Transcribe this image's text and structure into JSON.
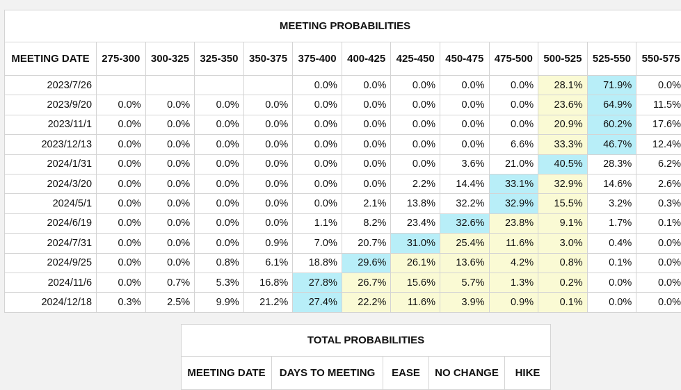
{
  "colors": {
    "max": "#b8eef8",
    "range": "#fafad4"
  },
  "meeting_table": {
    "title": "MEETING PROBABILITIES",
    "headers": [
      "MEETING DATE",
      "275-300",
      "300-325",
      "325-350",
      "350-375",
      "375-400",
      "400-425",
      "425-450",
      "450-475",
      "475-500",
      "500-525",
      "525-550",
      "550-575"
    ],
    "rows": [
      {
        "date": "2023/7/26",
        "cells": [
          null,
          null,
          null,
          null,
          "0.0%",
          "0.0%",
          "0.0%",
          "0.0%",
          "0.0%",
          "28.1%",
          "71.9%",
          "0.0%"
        ],
        "max": 10,
        "range": [
          9
        ]
      },
      {
        "date": "2023/9/20",
        "cells": [
          "0.0%",
          "0.0%",
          "0.0%",
          "0.0%",
          "0.0%",
          "0.0%",
          "0.0%",
          "0.0%",
          "0.0%",
          "23.6%",
          "64.9%",
          "11.5%"
        ],
        "max": 10,
        "range": [
          9
        ]
      },
      {
        "date": "2023/11/1",
        "cells": [
          "0.0%",
          "0.0%",
          "0.0%",
          "0.0%",
          "0.0%",
          "0.0%",
          "0.0%",
          "0.0%",
          "0.0%",
          "20.9%",
          "60.2%",
          "17.6%"
        ],
        "max": 10,
        "range": [
          9
        ]
      },
      {
        "date": "2023/12/13",
        "cells": [
          "0.0%",
          "0.0%",
          "0.0%",
          "0.0%",
          "0.0%",
          "0.0%",
          "0.0%",
          "0.0%",
          "6.6%",
          "33.3%",
          "46.7%",
          "12.4%"
        ],
        "max": 10,
        "range": [
          9
        ]
      },
      {
        "date": "2024/1/31",
        "cells": [
          "0.0%",
          "0.0%",
          "0.0%",
          "0.0%",
          "0.0%",
          "0.0%",
          "0.0%",
          "3.6%",
          "21.0%",
          "40.5%",
          "28.3%",
          "6.2%"
        ],
        "max": 9,
        "range": []
      },
      {
        "date": "2024/3/20",
        "cells": [
          "0.0%",
          "0.0%",
          "0.0%",
          "0.0%",
          "0.0%",
          "0.0%",
          "2.2%",
          "14.4%",
          "33.1%",
          "32.9%",
          "14.6%",
          "2.6%"
        ],
        "max": 8,
        "range": [
          9
        ]
      },
      {
        "date": "2024/5/1",
        "cells": [
          "0.0%",
          "0.0%",
          "0.0%",
          "0.0%",
          "0.0%",
          "2.1%",
          "13.8%",
          "32.2%",
          "32.9%",
          "15.5%",
          "3.2%",
          "0.3%"
        ],
        "max": 8,
        "range": [
          9
        ]
      },
      {
        "date": "2024/6/19",
        "cells": [
          "0.0%",
          "0.0%",
          "0.0%",
          "0.0%",
          "1.1%",
          "8.2%",
          "23.4%",
          "32.6%",
          "23.8%",
          "9.1%",
          "1.7%",
          "0.1%"
        ],
        "max": 7,
        "range": [
          8,
          9
        ]
      },
      {
        "date": "2024/7/31",
        "cells": [
          "0.0%",
          "0.0%",
          "0.0%",
          "0.9%",
          "7.0%",
          "20.7%",
          "31.0%",
          "25.4%",
          "11.6%",
          "3.0%",
          "0.4%",
          "0.0%"
        ],
        "max": 6,
        "range": [
          7,
          8,
          9
        ]
      },
      {
        "date": "2024/9/25",
        "cells": [
          "0.0%",
          "0.0%",
          "0.8%",
          "6.1%",
          "18.8%",
          "29.6%",
          "26.1%",
          "13.6%",
          "4.2%",
          "0.8%",
          "0.1%",
          "0.0%"
        ],
        "max": 5,
        "range": [
          6,
          7,
          8,
          9
        ]
      },
      {
        "date": "2024/11/6",
        "cells": [
          "0.0%",
          "0.7%",
          "5.3%",
          "16.8%",
          "27.8%",
          "26.7%",
          "15.6%",
          "5.7%",
          "1.3%",
          "0.2%",
          "0.0%",
          "0.0%"
        ],
        "max": 4,
        "range": [
          5,
          6,
          7,
          8,
          9
        ]
      },
      {
        "date": "2024/12/18",
        "cells": [
          "0.3%",
          "2.5%",
          "9.9%",
          "21.2%",
          "27.4%",
          "22.2%",
          "11.6%",
          "3.9%",
          "0.9%",
          "0.1%",
          "0.0%",
          "0.0%"
        ],
        "max": 4,
        "range": [
          5,
          6,
          7,
          8,
          9
        ]
      }
    ]
  },
  "total_table": {
    "title": "TOTAL PROBABILITIES",
    "headers": [
      "MEETING DATE",
      "DAYS TO MEETING",
      "EASE",
      "NO CHANGE",
      "HIKE"
    ]
  }
}
